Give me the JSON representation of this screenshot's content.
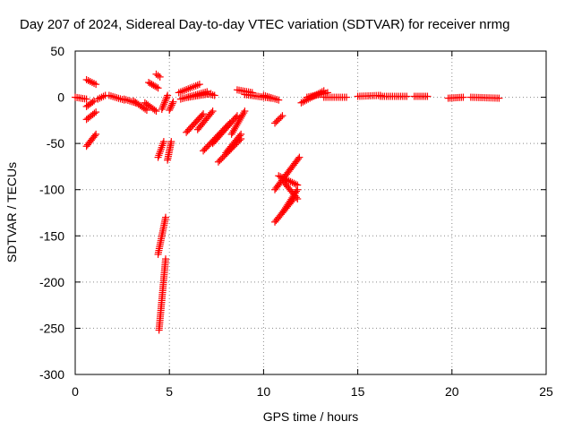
{
  "chart_data": {
    "type": "scatter",
    "title": "Day 207 of 2024, Sidereal Day-to-day VTEC variation (SDTVAR) for receiver nrmg",
    "xlabel": "GPS time / hours",
    "ylabel": "SDTVAR / TECUs",
    "xlim": [
      0,
      25
    ],
    "ylim": [
      -300,
      50
    ],
    "xticks": [
      "0",
      "5",
      "10",
      "15",
      "20",
      "25"
    ],
    "yticks": [
      "50",
      "0",
      "-50",
      "-100",
      "-150",
      "-200",
      "-250",
      "-300"
    ],
    "grid": true,
    "marker": "plus",
    "color": "#ff0000",
    "series": [
      {
        "name": "SDTVAR",
        "segments": [
          {
            "x": [
              0.0,
              0.6
            ],
            "y": [
              0,
              -2
            ]
          },
          {
            "x": [
              0.6,
              1.1
            ],
            "y": [
              19,
              14
            ]
          },
          {
            "x": [
              0.6,
              1.0
            ],
            "y": [
              -10,
              -4
            ]
          },
          {
            "x": [
              0.6,
              1.1
            ],
            "y": [
              -24,
              -16
            ]
          },
          {
            "x": [
              0.6,
              1.1
            ],
            "y": [
              -53,
              -40
            ]
          },
          {
            "x": [
              1.2,
              1.6
            ],
            "y": [
              -2,
              2
            ]
          },
          {
            "x": [
              1.8,
              2.6
            ],
            "y": [
              2,
              -3
            ]
          },
          {
            "x": [
              2.6,
              3.2
            ],
            "y": [
              -2,
              -6
            ]
          },
          {
            "x": [
              3.1,
              3.8
            ],
            "y": [
              -4,
              -14
            ]
          },
          {
            "x": [
              3.7,
              4.3
            ],
            "y": [
              -6,
              -15
            ]
          },
          {
            "x": [
              3.9,
              4.4
            ],
            "y": [
              16,
              10
            ]
          },
          {
            "x": [
              4.3,
              4.5
            ],
            "y": [
              25,
              22
            ]
          },
          {
            "x": [
              4.4,
              4.7
            ],
            "y": [
              -65,
              -48
            ]
          },
          {
            "x": [
              4.4,
              4.8
            ],
            "y": [
              -170,
              -130
            ]
          },
          {
            "x": [
              4.45,
              4.8
            ],
            "y": [
              -252,
              -175
            ]
          },
          {
            "x": [
              4.6,
              4.9
            ],
            "y": [
              -13,
              2
            ]
          },
          {
            "x": [
              4.9,
              5.1
            ],
            "y": [
              -68,
              -48
            ]
          },
          {
            "x": [
              5.0,
              5.2
            ],
            "y": [
              -14,
              -5
            ]
          },
          {
            "x": [
              5.5,
              6.6
            ],
            "y": [
              5,
              14
            ]
          },
          {
            "x": [
              5.6,
              7.0
            ],
            "y": [
              -2,
              6
            ]
          },
          {
            "x": [
              6.0,
              7.2
            ],
            "y": [
              0,
              4
            ]
          },
          {
            "x": [
              7.0,
              7.4
            ],
            "y": [
              4,
              2
            ]
          },
          {
            "x": [
              5.9,
              6.8
            ],
            "y": [
              -38,
              -18
            ]
          },
          {
            "x": [
              6.5,
              7.3
            ],
            "y": [
              -35,
              -15
            ]
          },
          {
            "x": [
              6.8,
              8.2
            ],
            "y": [
              -58,
              -28
            ]
          },
          {
            "x": [
              7.3,
              8.6
            ],
            "y": [
              -50,
              -20
            ]
          },
          {
            "x": [
              7.6,
              8.8
            ],
            "y": [
              -70,
              -45
            ]
          },
          {
            "x": [
              8.0,
              8.8
            ],
            "y": [
              -60,
              -40
            ]
          },
          {
            "x": [
              8.3,
              9.0
            ],
            "y": [
              -40,
              -15
            ]
          },
          {
            "x": [
              8.6,
              9.4
            ],
            "y": [
              8,
              5
            ]
          },
          {
            "x": [
              9.0,
              10.4
            ],
            "y": [
              3,
              -1
            ]
          },
          {
            "x": [
              10.0,
              10.8
            ],
            "y": [
              2,
              -3
            ]
          },
          {
            "x": [
              10.6,
              11.0
            ],
            "y": [
              -28,
              -20
            ]
          },
          {
            "x": [
              10.6,
              11.6
            ],
            "y": [
              -135,
              -110
            ]
          },
          {
            "x": [
              11.0,
              11.8
            ],
            "y": [
              -125,
              -100
            ]
          },
          {
            "x": [
              10.6,
              11.9
            ],
            "y": [
              -100,
              -65
            ]
          },
          {
            "x": [
              10.8,
              11.8
            ],
            "y": [
              -85,
              -95
            ]
          },
          {
            "x": [
              11.0,
              11.8
            ],
            "y": [
              -90,
              -110
            ]
          },
          {
            "x": [
              12.0,
              13.2
            ],
            "y": [
              -6,
              7
            ]
          },
          {
            "x": [
              12.3,
              13.4
            ],
            "y": [
              0,
              5
            ]
          },
          {
            "x": [
              13.2,
              14.4
            ],
            "y": [
              0,
              0
            ]
          },
          {
            "x": [
              15.0,
              16.2
            ],
            "y": [
              1,
              2
            ]
          },
          {
            "x": [
              16.2,
              17.6
            ],
            "y": [
              1,
              1
            ]
          },
          {
            "x": [
              18.0,
              18.7
            ],
            "y": [
              1,
              1
            ]
          },
          {
            "x": [
              19.8,
              20.6
            ],
            "y": [
              -1,
              0
            ]
          },
          {
            "x": [
              21.0,
              22.5
            ],
            "y": [
              0,
              -1
            ]
          }
        ]
      }
    ]
  }
}
